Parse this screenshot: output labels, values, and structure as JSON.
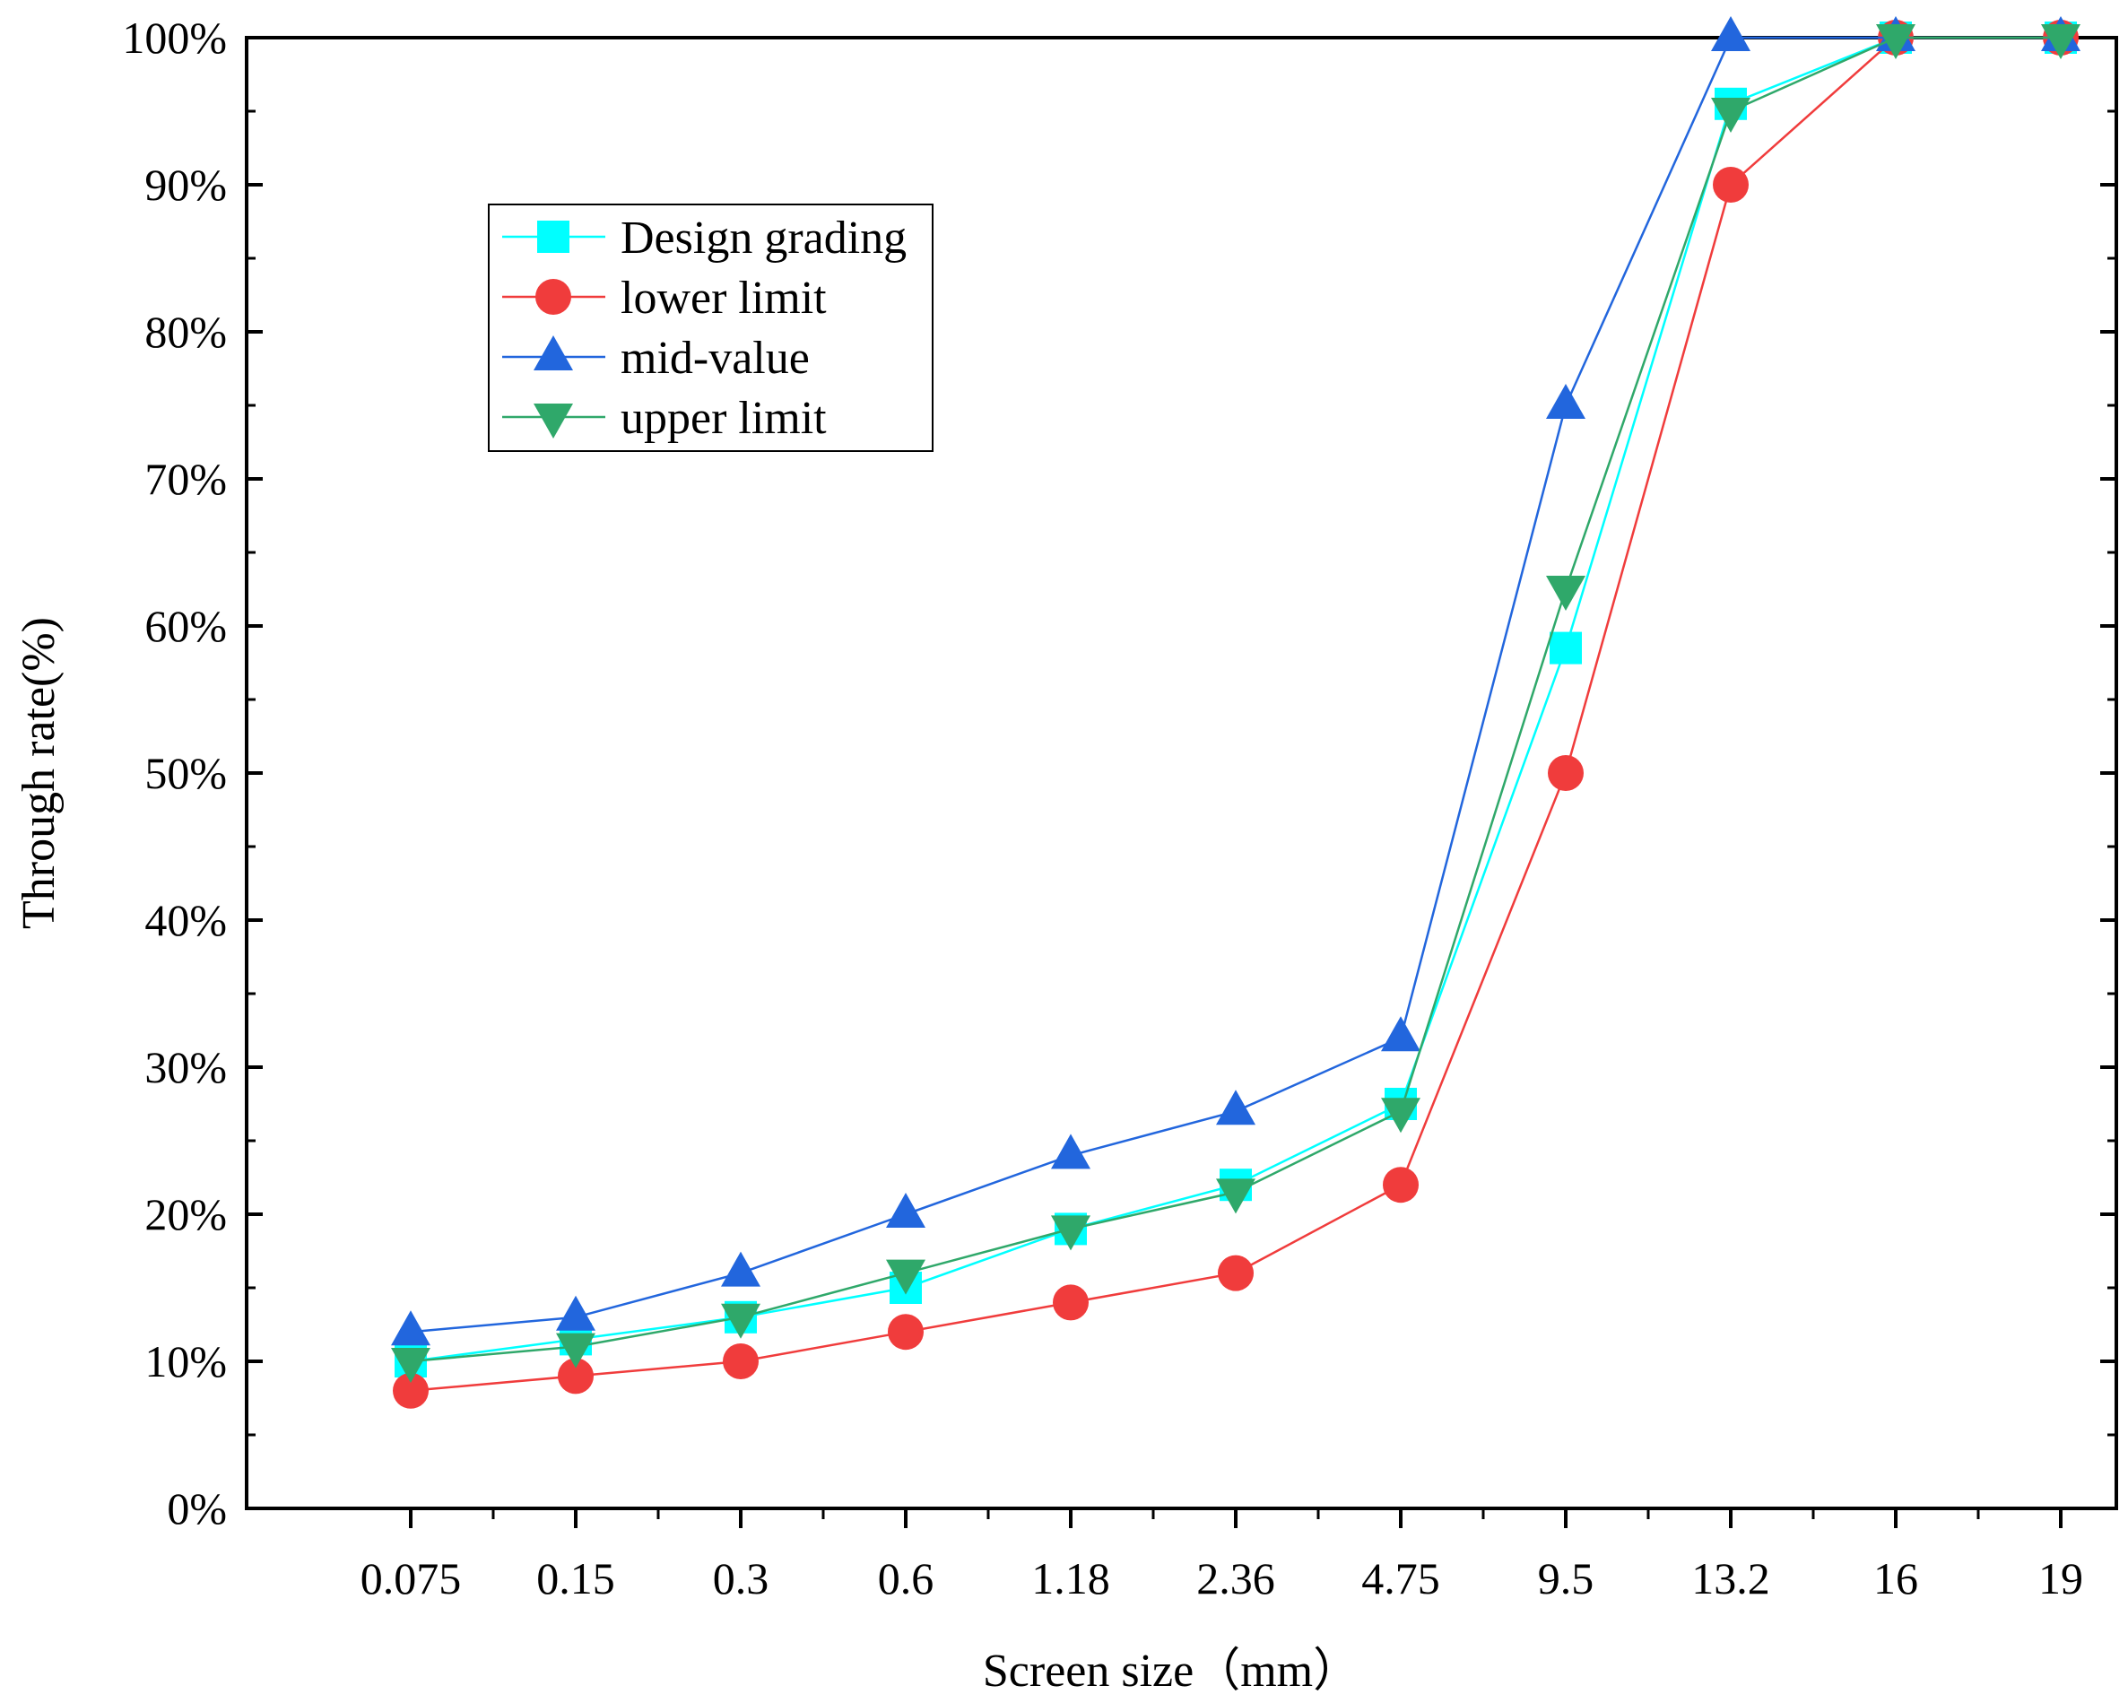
{
  "chart_data": {
    "type": "line",
    "title": "",
    "xlabel": "Screen size（mm）",
    "ylabel": "Through rate(%)",
    "categories": [
      "0.075",
      "0.15",
      "0.3",
      "0.6",
      "1.18",
      "2.36",
      "4.75",
      "9.5",
      "13.2",
      "16",
      "19"
    ],
    "yticks": [
      "0%",
      "10%",
      "20%",
      "30%",
      "40%",
      "50%",
      "60%",
      "70%",
      "80%",
      "90%",
      "100%"
    ],
    "ylim": [
      0,
      100
    ],
    "grid": false,
    "legend_position": "upper-left",
    "series": [
      {
        "name": "Design grading",
        "color": "#00FFFF",
        "marker": "square",
        "values": [
          10,
          11.5,
          13,
          15,
          19,
          22,
          27.5,
          58.5,
          95.5,
          100,
          100
        ]
      },
      {
        "name": "lower limit",
        "color": "#F03C3C",
        "marker": "circle",
        "values": [
          8,
          9,
          10,
          12,
          14,
          16,
          22,
          50,
          90,
          100,
          100
        ]
      },
      {
        "name": "mid-value",
        "color": "#2266DD",
        "marker": "triangle-up",
        "values": [
          12,
          13,
          16,
          20,
          24,
          27,
          32,
          75,
          100,
          100,
          100
        ]
      },
      {
        "name": "upper limit",
        "color": "#2FA86A",
        "marker": "triangle-down",
        "values": [
          10,
          11,
          13,
          16,
          19,
          21.5,
          27,
          62.5,
          95,
          100,
          100
        ]
      }
    ]
  }
}
